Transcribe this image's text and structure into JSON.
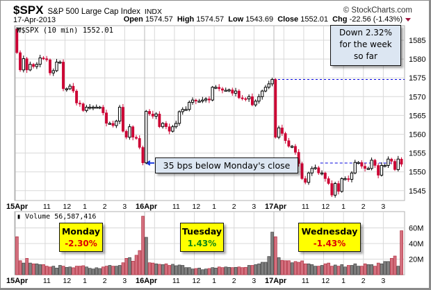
{
  "header": {
    "symbol": "$SPX",
    "name": "S&P 500 Large Cap Index",
    "exchange": "INDX",
    "copyright": "© StockCharts.com",
    "date": "17-Apr-2013",
    "open_label": "Open",
    "open": "1574.57",
    "high_label": "High",
    "high": "1574.57",
    "low_label": "Low",
    "low": "1543.69",
    "close_label": "Close",
    "close": "1552.01",
    "chg_label": "Chg",
    "chg": "-22.56 (-1.43%)"
  },
  "colors": {
    "down": "#cc0033",
    "up_fill": "#ffffff",
    "vol_down": "#d4707f",
    "vol_up": "#808080",
    "dash": "#0000dd",
    "annotation_bg": "#dce6f2",
    "label_bg": "#ffff00"
  },
  "annotations": {
    "week": [
      "Down 2.32%",
      "for the week",
      "so far"
    ],
    "bps": "35 bps below Monday's close",
    "monday": {
      "day": "Monday",
      "pct": "-2.30%",
      "color": "#dd0000"
    },
    "tuesday": {
      "day": "Tuesday",
      "pct": "1.43%",
      "color": "#118811"
    },
    "wednesday": {
      "day": "Wednesday",
      "pct": "-1.43%",
      "color": "#dd0000"
    }
  },
  "chart_data": [
    {
      "type": "candlestick",
      "title": "$SPX (10 min) 1552.01",
      "ylim": [
        1542,
        1589
      ],
      "y_ticks": [
        1545,
        1550,
        1555,
        1560,
        1565,
        1570,
        1575,
        1580,
        1585
      ],
      "x_ticks": [
        "15Apr",
        "11",
        "12",
        "1",
        "2",
        "3",
        "16Apr",
        "11",
        "12",
        "1",
        "2",
        "3",
        "17Apr",
        "11",
        "12",
        "1",
        "2",
        "3"
      ],
      "reference_lines": [
        1574.57,
        1552.35
      ],
      "first_open": 1588.0,
      "days": [
        {
          "label": "15Apr",
          "close": [
            1581.7,
            1577.1,
            1580.1,
            1577.1,
            1578.6,
            1578.0,
            1578.6,
            1580.3,
            1580.1,
            1579.8,
            1576.3,
            1576.9,
            1579.2,
            1579.2,
            1572.1,
            1572.1,
            1572.8,
            1571.5,
            1568.3,
            1568.1,
            1566.3,
            1567.2,
            1567.2,
            1567.2,
            1567.2,
            1567.2,
            1565.7,
            1562.9,
            1562.9,
            1562.3,
            1563.5,
            1567.2,
            1560.8,
            1559.2,
            1562.0,
            1559.2,
            1558.9,
            1556.5,
            1552.4
          ]
        },
        {
          "label": "16Apr",
          "close": [
            1566.1,
            1565.4,
            1564.8,
            1565.4,
            1562.0,
            1562.9,
            1562.0,
            1560.8,
            1562.0,
            1562.9,
            1566.0,
            1566.6,
            1566.6,
            1568.5,
            1569.1,
            1568.8,
            1568.8,
            1569.1,
            1569.4,
            1569.1,
            1572.5,
            1572.5,
            1572.1,
            1571.7,
            1571.7,
            1571.8,
            1570.9,
            1571.5,
            1569.7,
            1569.5,
            1569.4,
            1570.0,
            1567.8,
            1568.8,
            1570.0,
            1571.5,
            1572.5,
            1573.4,
            1574.57
          ]
        },
        {
          "label": "17Apr",
          "close": [
            1559.2,
            1561.7,
            1560.2,
            1558.3,
            1556.8,
            1556.8,
            1555.2,
            1552.2,
            1548.2,
            1547.2,
            1549.7,
            1550.9,
            1551.1,
            1549.7,
            1549.7,
            1548.2,
            1546.9,
            1543.8,
            1546.9,
            1544.8,
            1548.2,
            1548.2,
            1548.0,
            1549.7,
            1552.5,
            1552.5,
            1551.5,
            1550.9,
            1550.9,
            1553.1,
            1551.7,
            1549.1,
            1551.7,
            1551.7,
            1553.4,
            1552.8,
            1550.6,
            1553.4,
            1552.01
          ]
        }
      ]
    },
    {
      "type": "bar",
      "title": "Volume 56,587,416",
      "units": "M",
      "ylim": [
        0,
        85
      ],
      "y_ticks": [
        "20M",
        "40M",
        "60M"
      ],
      "y_tick_values": [
        20,
        40,
        60
      ],
      "days": [
        {
          "label": "15Apr",
          "volume": [
            48.7,
            18,
            15,
            21,
            15,
            14,
            14,
            13,
            13,
            11,
            10,
            11,
            8.6,
            12,
            11,
            9.5,
            10,
            9,
            11,
            11,
            11.6,
            10,
            8.3,
            7.4,
            9,
            8,
            10,
            11,
            12,
            11,
            11,
            12,
            15.4,
            21,
            22,
            17.5,
            25,
            31,
            75
          ]
        },
        {
          "label": "16Apr",
          "volume": [
            48,
            15.4,
            15,
            14,
            13.4,
            13,
            14,
            12,
            13.4,
            11.6,
            12.5,
            12,
            9.2,
            9.2,
            7.4,
            8,
            8.6,
            6.5,
            7.4,
            8,
            9.2,
            8.6,
            10,
            9.2,
            10,
            9.5,
            9.2,
            9.5,
            10,
            9.2,
            9.5,
            12,
            12,
            13,
            14,
            16,
            16,
            23.4,
            54.6
          ]
        },
        {
          "label": "17Apr",
          "volume": [
            48.7,
            22,
            18.4,
            18,
            18,
            15.4,
            17,
            16,
            17.8,
            14,
            14,
            13,
            11,
            11,
            12,
            14,
            15,
            11,
            12.5,
            11,
            13,
            10,
            12,
            12,
            14,
            11,
            11,
            14,
            13,
            13,
            11,
            15,
            14,
            17,
            17,
            21,
            24,
            11,
            56.4
          ]
        }
      ]
    }
  ]
}
